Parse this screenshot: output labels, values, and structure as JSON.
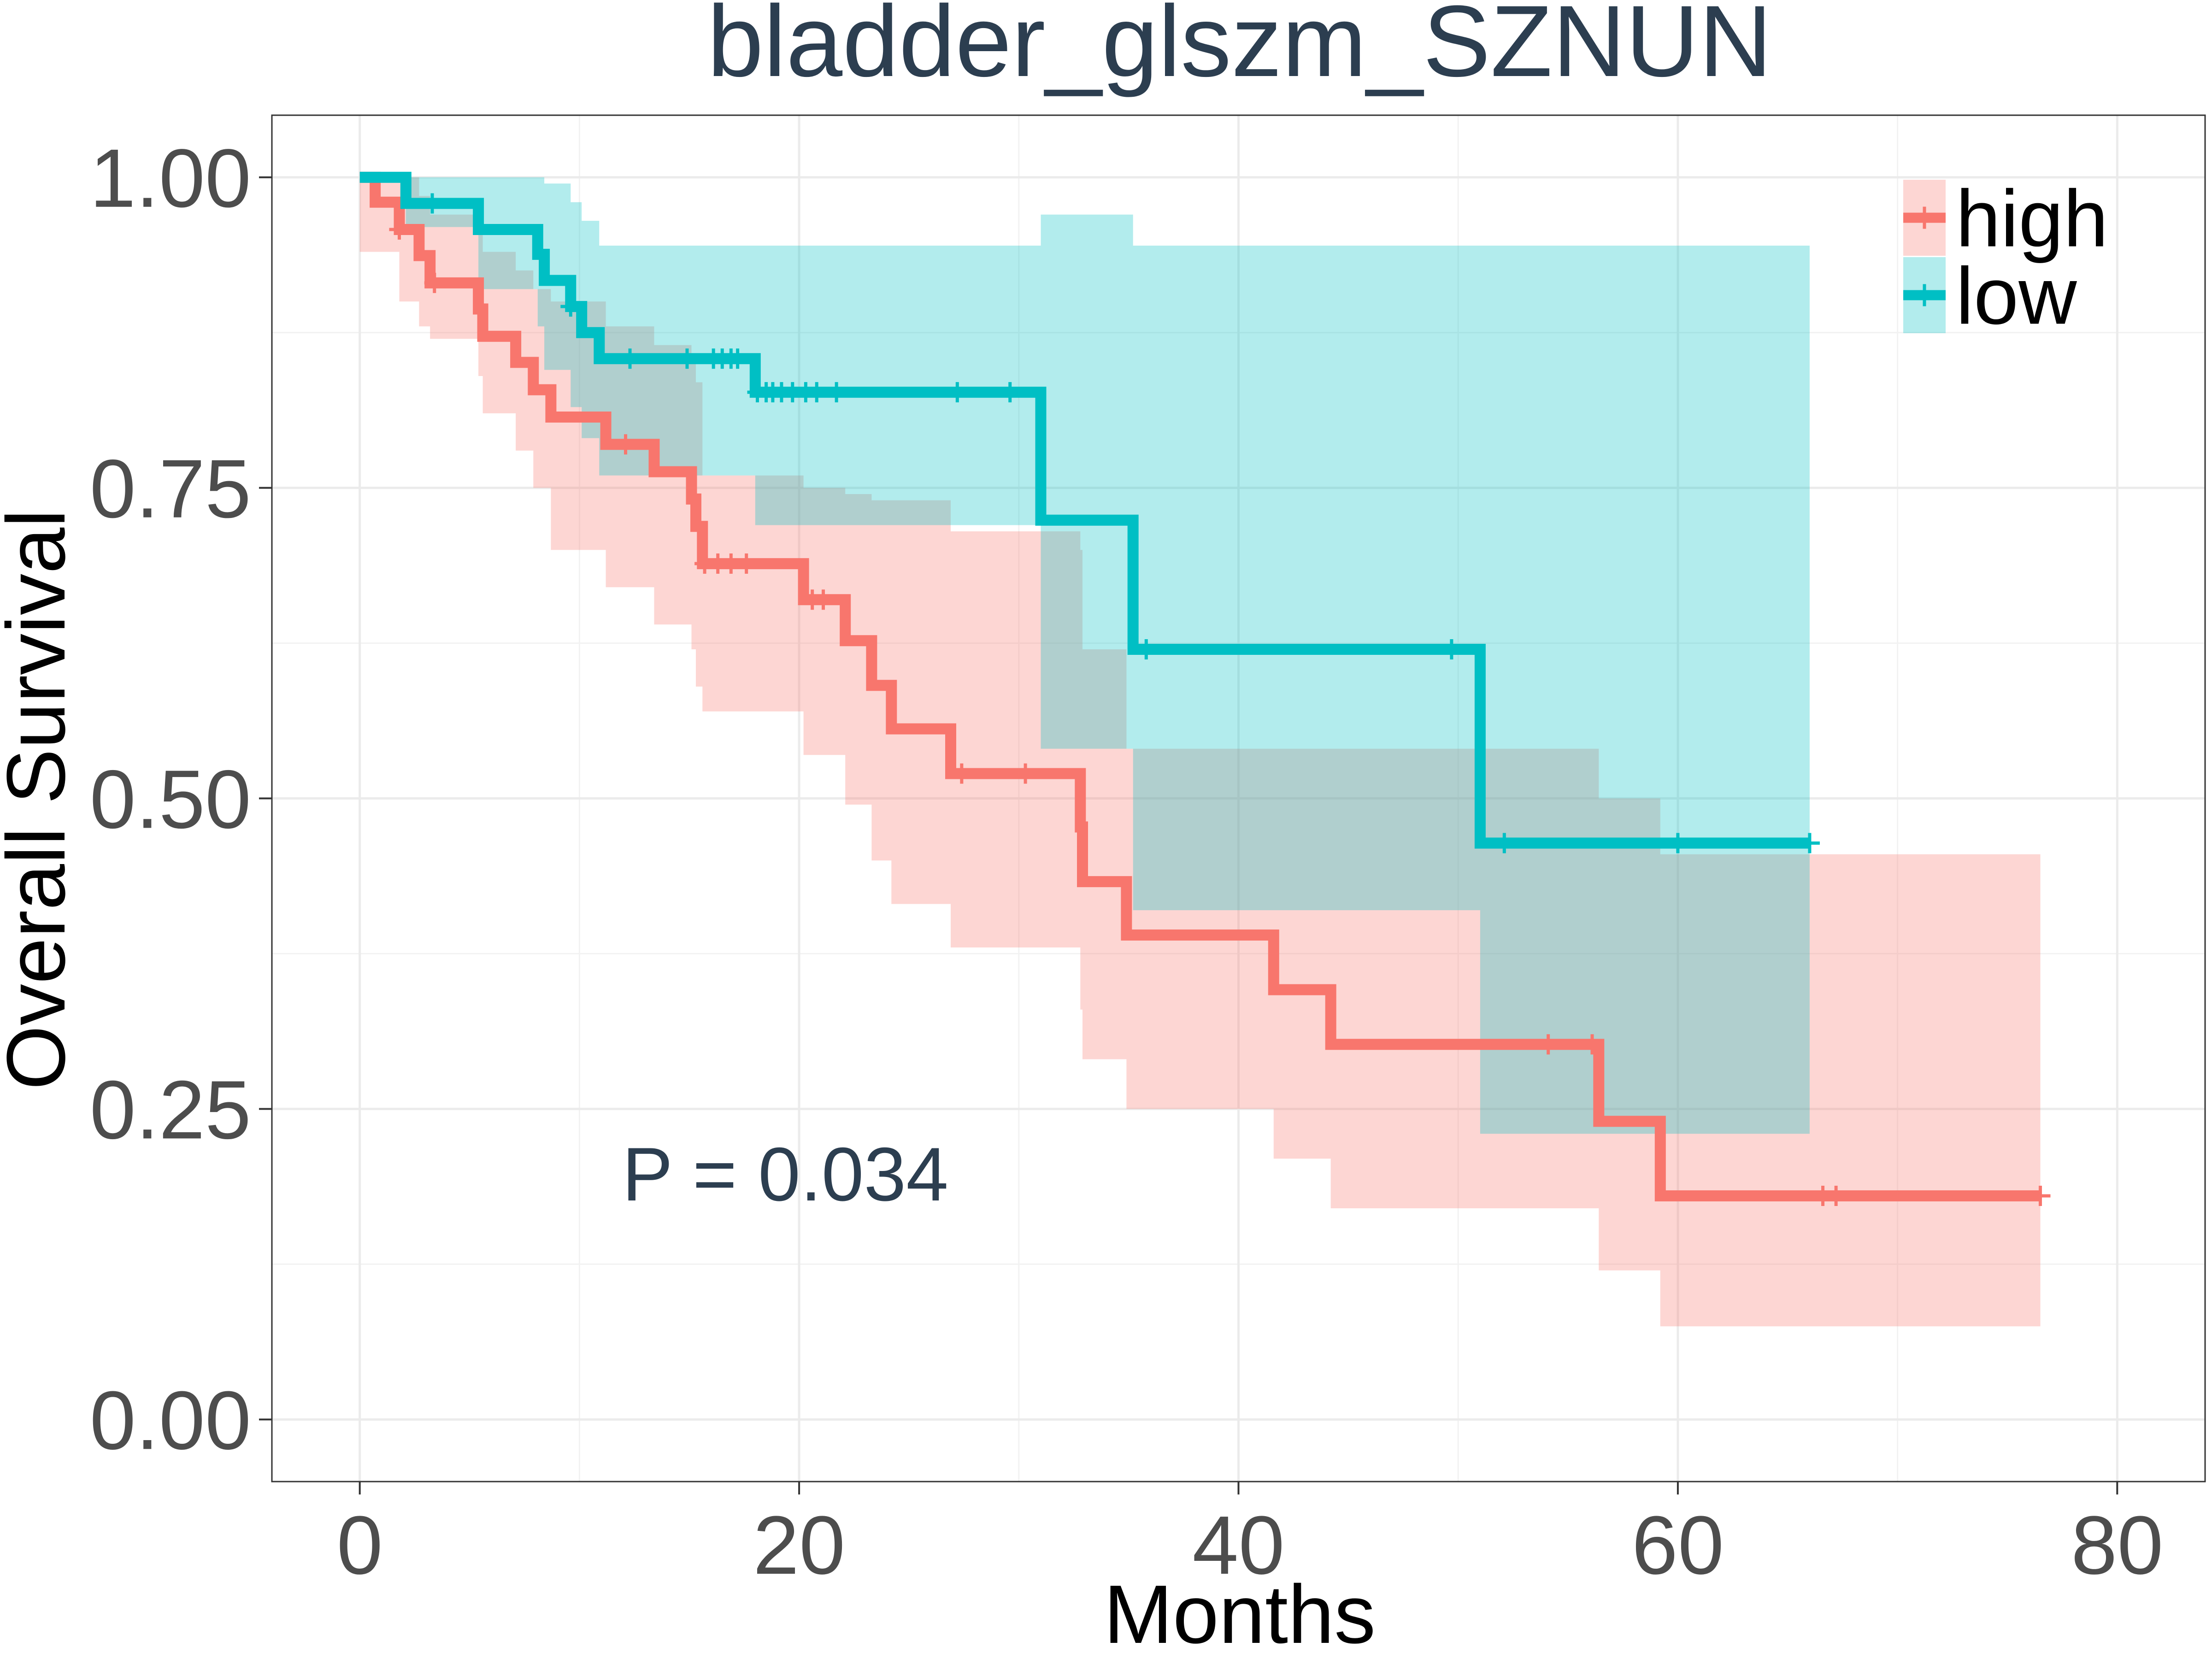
{
  "chart_data": {
    "type": "line",
    "title": "bladder_glszm_SZNUN",
    "xlabel": "Months",
    "ylabel": "Overall Survival",
    "xlim": [
      -4,
      84
    ],
    "ylim": [
      -0.05,
      1.05
    ],
    "x_ticks": [
      0,
      20,
      40,
      60,
      80
    ],
    "x_tick_labels": [
      "0",
      "20",
      "40",
      "60",
      "80"
    ],
    "y_ticks": [
      0,
      0.25,
      0.5,
      0.75,
      1
    ],
    "y_tick_labels": [
      "0.00",
      "0.25",
      "0.50",
      "0.75",
      "1.00"
    ],
    "grid": true,
    "legend_position": "top-right",
    "annotation": "P = 0.034",
    "series": [
      {
        "name": "high",
        "color": "#F8766D",
        "fill": "#F8766D",
        "step": [
          [
            0,
            1.0
          ],
          [
            0.7,
            0.98
          ],
          [
            1.8,
            0.958
          ],
          [
            2.7,
            0.937
          ],
          [
            3.2,
            0.915
          ],
          [
            5.4,
            0.894
          ],
          [
            5.6,
            0.872
          ],
          [
            7.1,
            0.851
          ],
          [
            7.9,
            0.829
          ],
          [
            8.7,
            0.807
          ],
          [
            11.2,
            0.785
          ],
          [
            13.4,
            0.763
          ],
          [
            15.1,
            0.741
          ],
          [
            15.3,
            0.719
          ],
          [
            15.6,
            0.689
          ],
          [
            20.2,
            0.66
          ],
          [
            22.1,
            0.627
          ],
          [
            23.3,
            0.591
          ],
          [
            24.2,
            0.556
          ],
          [
            26.9,
            0.52
          ],
          [
            32.8,
            0.477
          ],
          [
            32.9,
            0.433
          ],
          [
            34.9,
            0.39
          ],
          [
            41.6,
            0.346
          ],
          [
            44.2,
            0.302
          ],
          [
            56.4,
            0.24
          ],
          [
            59.2,
            0.18
          ],
          [
            76.5,
            0.18
          ]
        ],
        "upper": [
          [
            0,
            1.0
          ],
          [
            0.7,
            1.0
          ],
          [
            1.8,
            1.0
          ],
          [
            2.7,
            0.985
          ],
          [
            3.2,
            0.97
          ],
          [
            5.4,
            0.955
          ],
          [
            5.6,
            0.94
          ],
          [
            7.1,
            0.925
          ],
          [
            7.9,
            0.91
          ],
          [
            8.7,
            0.9
          ],
          [
            11.2,
            0.88
          ],
          [
            13.4,
            0.865
          ],
          [
            15.1,
            0.85
          ],
          [
            15.3,
            0.835
          ],
          [
            15.6,
            0.76
          ],
          [
            20.2,
            0.75
          ],
          [
            22.1,
            0.745
          ],
          [
            23.3,
            0.74
          ],
          [
            24.2,
            0.74
          ],
          [
            26.9,
            0.715
          ],
          [
            32.8,
            0.7
          ],
          [
            32.9,
            0.62
          ],
          [
            34.9,
            0.54
          ],
          [
            41.6,
            0.54
          ],
          [
            44.2,
            0.54
          ],
          [
            56.4,
            0.5
          ],
          [
            59.2,
            0.455
          ],
          [
            76.5,
            0.455
          ]
        ],
        "lower": [
          [
            0,
            0.94
          ],
          [
            0.7,
            0.94
          ],
          [
            1.8,
            0.9
          ],
          [
            2.7,
            0.88
          ],
          [
            3.2,
            0.87
          ],
          [
            5.4,
            0.84
          ],
          [
            5.6,
            0.81
          ],
          [
            7.1,
            0.78
          ],
          [
            7.9,
            0.75
          ],
          [
            8.7,
            0.7
          ],
          [
            11.2,
            0.67
          ],
          [
            13.4,
            0.64
          ],
          [
            15.1,
            0.62
          ],
          [
            15.3,
            0.59
          ],
          [
            15.6,
            0.57
          ],
          [
            20.2,
            0.535
          ],
          [
            22.1,
            0.495
          ],
          [
            23.3,
            0.45
          ],
          [
            24.2,
            0.415
          ],
          [
            26.9,
            0.38
          ],
          [
            32.8,
            0.33
          ],
          [
            32.9,
            0.29
          ],
          [
            34.9,
            0.25
          ],
          [
            41.6,
            0.21
          ],
          [
            44.2,
            0.17
          ],
          [
            56.4,
            0.12
          ],
          [
            59.2,
            0.075
          ],
          [
            76.5,
            0.075
          ]
        ],
        "censor_x": [
          1.8,
          3.4,
          12.1,
          15.7,
          16.3,
          16.9,
          17.6,
          20.6,
          21.1,
          27.4,
          30.3,
          54.1,
          56.1,
          66.6,
          67.2,
          76.5
        ]
      },
      {
        "name": "low",
        "color": "#00BFC4",
        "fill": "#00BFC4",
        "step": [
          [
            0,
            1.0
          ],
          [
            2.1,
            0.979
          ],
          [
            5.4,
            0.958
          ],
          [
            8.1,
            0.938
          ],
          [
            8.4,
            0.917
          ],
          [
            9.6,
            0.896
          ],
          [
            10.1,
            0.875
          ],
          [
            10.9,
            0.854
          ],
          [
            18.0,
            0.827
          ],
          [
            31.0,
            0.724
          ],
          [
            35.2,
            0.62
          ],
          [
            51.0,
            0.464
          ],
          [
            66.0,
            0.464
          ]
        ],
        "upper": [
          [
            0,
            1.0
          ],
          [
            2.1,
            1.0
          ],
          [
            5.4,
            1.0
          ],
          [
            8.1,
            1.0
          ],
          [
            8.4,
            0.995
          ],
          [
            9.6,
            0.98
          ],
          [
            10.1,
            0.965
          ],
          [
            10.9,
            0.945
          ],
          [
            18.0,
            0.945
          ],
          [
            31.0,
            0.97
          ],
          [
            35.2,
            0.945
          ],
          [
            51.0,
            0.945
          ],
          [
            66.0,
            0.945
          ]
        ],
        "lower": [
          [
            0,
            1.0
          ],
          [
            2.1,
            0.96
          ],
          [
            5.4,
            0.91
          ],
          [
            8.1,
            0.88
          ],
          [
            8.4,
            0.845
          ],
          [
            9.6,
            0.815
          ],
          [
            10.1,
            0.79
          ],
          [
            10.9,
            0.76
          ],
          [
            18.0,
            0.72
          ],
          [
            31.0,
            0.54
          ],
          [
            35.2,
            0.41
          ],
          [
            51.0,
            0.23
          ],
          [
            66.0,
            0.23
          ]
        ],
        "censor_x": [
          3.3,
          9.6,
          12.3,
          14.9,
          16.1,
          16.5,
          16.9,
          17.2,
          18.1,
          18.5,
          18.8,
          19.2,
          19.7,
          20.3,
          20.8,
          21.7,
          27.2,
          29.6,
          35.8,
          49.7,
          52.1,
          60.0,
          66.0
        ]
      }
    ]
  }
}
